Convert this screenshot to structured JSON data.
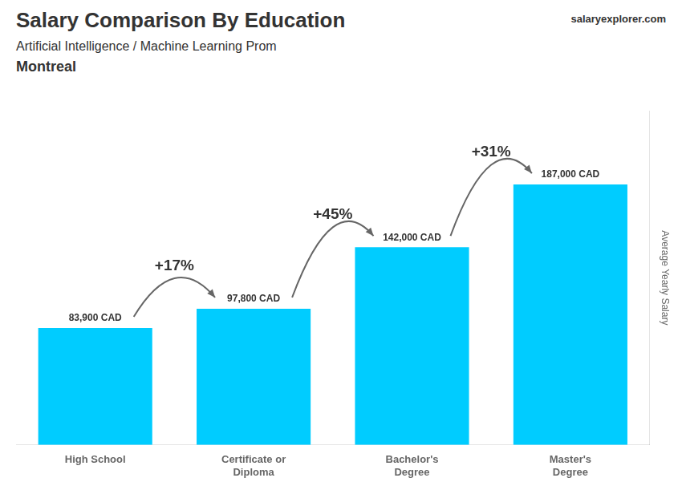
{
  "chart_data": {
    "type": "bar",
    "title": "Salary Comparison By Education",
    "subtitle": [
      "Artificial Intelligence / Machine Learning Prom",
      "Montreal"
    ],
    "source": "salaryexplorer.com",
    "ylabel": "Average Yearly Salary",
    "categories": [
      "High School",
      "Certificate or\nDiploma",
      "Bachelor's\nDegree",
      "Master's\nDegree"
    ],
    "values": [
      83900,
      97800,
      142000,
      187000
    ],
    "value_labels": [
      "83,900 CAD",
      "97,800 CAD",
      "142,000 CAD",
      "187,000 CAD"
    ],
    "data_labels": true,
    "annotations": [
      "+17%",
      "+45%",
      "+31%"
    ],
    "color": "#00CCFF",
    "ylim": [
      0,
      240000
    ],
    "grid": false,
    "tick_labels": "x"
  }
}
